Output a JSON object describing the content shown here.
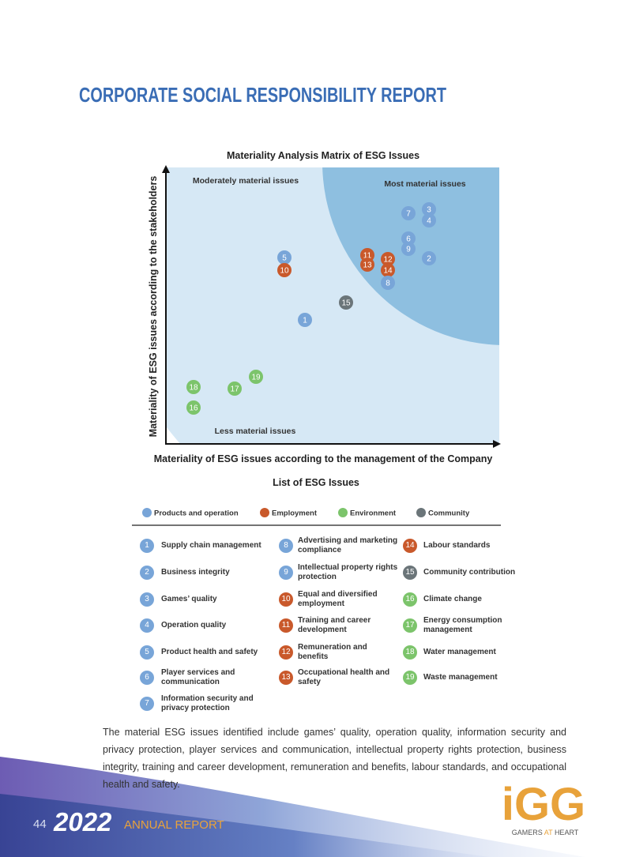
{
  "header": {
    "title": "CORPORATE SOCIAL RESPONSIBILITY REPORT"
  },
  "matrix": {
    "title": "Materiality Analysis Matrix of ESG Issues",
    "y_axis_label": "Materiality of ESG issues according to the stakeholders",
    "x_axis_label": "Materiality of ESG issues according to the management of the Company",
    "regions": [
      "Moderately material issues",
      "Most material issues",
      "Less material issues"
    ],
    "points": [
      {
        "label": 7,
        "category": 0
      },
      {
        "label": 3,
        "category": 0
      },
      {
        "label": 4,
        "category": 0
      },
      {
        "label": 6,
        "category": 0
      },
      {
        "label": 9,
        "category": 0
      },
      {
        "label": 2,
        "category": 0
      },
      {
        "label": 11,
        "category": 1
      },
      {
        "label": 13,
        "category": 1
      },
      {
        "label": 12,
        "category": 1
      },
      {
        "label": 14,
        "category": 1
      },
      {
        "label": 8,
        "category": 0
      },
      {
        "label": 5,
        "category": 0
      },
      {
        "label": 10,
        "category": 1
      },
      {
        "label": 15,
        "category": 3
      },
      {
        "label": 1,
        "category": 0
      },
      {
        "label": 19,
        "category": 2
      },
      {
        "label": 18,
        "category": 2
      },
      {
        "label": 17,
        "category": 2
      },
      {
        "label": 16,
        "category": 2
      }
    ]
  },
  "list": {
    "title": "List of ESG Issues",
    "legend": [
      {
        "name": "Products and operation",
        "color": "#78a5d8"
      },
      {
        "name": "Employment",
        "color": "#c9592b"
      },
      {
        "name": "Environment",
        "color": "#7cc46b"
      },
      {
        "name": "Community",
        "color": "#6b7579"
      }
    ],
    "items": [
      {
        "number": 1,
        "name": "Supply chain management",
        "category": 0
      },
      {
        "number": 2,
        "name": "Business integrity",
        "category": 0
      },
      {
        "number": 3,
        "name": "Games’ quality",
        "category": 0
      },
      {
        "number": 4,
        "name": "Operation quality",
        "category": 0
      },
      {
        "number": 5,
        "name": "Product health and safety",
        "category": 0
      },
      {
        "number": 6,
        "name": "Player services and communication",
        "category": 0
      },
      {
        "number": 7,
        "name": "Information security and privacy protection",
        "category": 0
      },
      {
        "number": 8,
        "name": "Advertising and marketing compliance",
        "category": 0
      },
      {
        "number": 9,
        "name": "Intellectual property rights protection",
        "category": 0
      },
      {
        "number": 10,
        "name": "Equal and diversified employment",
        "category": 1
      },
      {
        "number": 11,
        "name": "Training and career development",
        "category": 1
      },
      {
        "number": 12,
        "name": "Remuneration and benefits",
        "category": 1
      },
      {
        "number": 13,
        "name": "Occupational health and safety",
        "category": 1
      },
      {
        "number": 14,
        "name": "Labour standards",
        "category": 1
      },
      {
        "number": 15,
        "name": "Community contribution",
        "category": 3
      },
      {
        "number": 16,
        "name": "Climate change",
        "category": 2
      },
      {
        "number": 17,
        "name": "Energy consumption management",
        "category": 2
      },
      {
        "number": 18,
        "name": "Water management",
        "category": 2
      },
      {
        "number": 19,
        "name": "Waste management",
        "category": 2
      }
    ]
  },
  "body": {
    "paragraph": "The material ESG issues identified include games’ quality, operation quality, information security and privacy protection, player services and communication, intellectual property rights protection, business integrity, training and career development, remuneration and benefits, labour standards, and occupational health and safety."
  },
  "footer": {
    "page": "44",
    "year": "2022",
    "report": "ANNUAL REPORT",
    "logo": "iGG",
    "tagline": [
      "GAMERS",
      "AT",
      "HEART"
    ]
  }
}
